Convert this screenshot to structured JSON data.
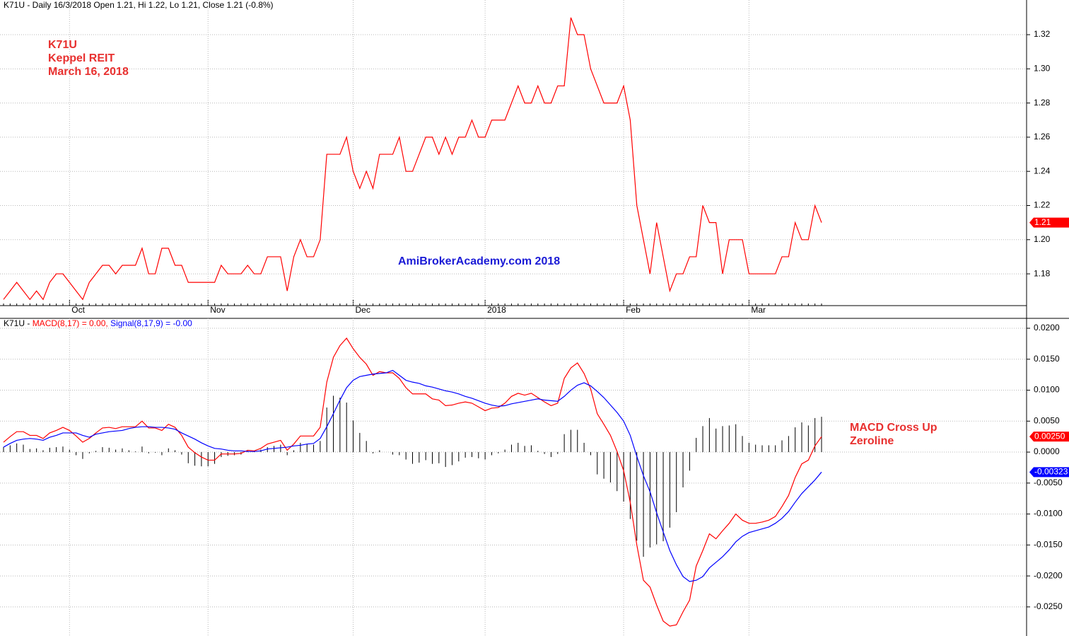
{
  "chart_data": [
    {
      "type": "line",
      "title": "K71U - Daily 16/3/2018 Open 1.21, Hi 1.22, Lo 1.21, Close 1.21 (-0.8%)",
      "categories": [
        null,
        null,
        null,
        null,
        null,
        null,
        null,
        null,
        null,
        null,
        "Oct",
        null,
        null,
        null,
        null,
        null,
        null,
        null,
        null,
        null,
        null,
        null,
        null,
        null,
        null,
        null,
        null,
        null,
        null,
        null,
        null,
        "Nov",
        null,
        null,
        null,
        null,
        null,
        null,
        null,
        null,
        null,
        null,
        null,
        null,
        null,
        null,
        null,
        null,
        null,
        null,
        null,
        null,
        null,
        "Dec",
        null,
        null,
        null,
        null,
        null,
        null,
        null,
        null,
        null,
        null,
        null,
        null,
        null,
        null,
        null,
        null,
        null,
        null,
        null,
        "2018",
        null,
        null,
        null,
        null,
        null,
        null,
        null,
        null,
        null,
        null,
        null,
        null,
        null,
        null,
        null,
        null,
        null,
        null,
        null,
        null,
        "Feb",
        null,
        null,
        null,
        null,
        null,
        null,
        null,
        null,
        null,
        null,
        null,
        null,
        null,
        null,
        null,
        null,
        null,
        null,
        "Mar",
        null,
        null,
        null,
        null,
        null,
        null,
        null,
        null,
        null,
        null,
        null
      ],
      "series": [
        {
          "color": "#ff0000",
          "values": [
            1.165,
            1.17,
            1.175,
            1.17,
            1.165,
            1.17,
            1.165,
            1.175,
            1.18,
            1.18,
            1.175,
            1.17,
            1.165,
            1.175,
            1.18,
            1.185,
            1.185,
            1.18,
            1.185,
            1.185,
            1.185,
            1.195,
            1.18,
            1.18,
            1.195,
            1.195,
            1.185,
            1.185,
            1.175,
            1.175,
            1.175,
            1.175,
            1.175,
            1.185,
            1.18,
            1.18,
            1.18,
            1.185,
            1.18,
            1.18,
            1.19,
            1.19,
            1.19,
            1.17,
            1.19,
            1.2,
            1.19,
            1.19,
            1.2,
            1.25,
            1.25,
            1.25,
            1.26,
            1.24,
            1.23,
            1.24,
            1.23,
            1.25,
            1.25,
            1.25,
            1.26,
            1.24,
            1.24,
            1.25,
            1.26,
            1.26,
            1.25,
            1.26,
            1.25,
            1.26,
            1.26,
            1.27,
            1.26,
            1.26,
            1.27,
            1.27,
            1.27,
            1.28,
            1.29,
            1.28,
            1.28,
            1.29,
            1.28,
            1.28,
            1.29,
            1.29,
            1.33,
            1.32,
            1.32,
            1.3,
            1.29,
            1.28,
            1.28,
            1.28,
            1.29,
            1.27,
            1.22,
            1.2,
            1.18,
            1.21,
            1.19,
            1.17,
            1.18,
            1.18,
            1.19,
            1.19,
            1.22,
            1.21,
            1.21,
            1.18,
            1.2,
            1.2,
            1.2,
            1.18,
            1.18,
            1.18,
            1.18,
            1.18,
            1.19,
            1.19,
            1.21,
            1.2,
            1.2,
            1.22,
            1.21
          ]
        }
      ],
      "ylim": [
        1.1614,
        1.3403
      ],
      "yticks": [
        1.18,
        {
          "value": 1.2,
          "label": "1.20"
        },
        1.22,
        1.24,
        1.26,
        1.28,
        {
          "value": 1.3,
          "label": "1.30"
        },
        1.32
      ],
      "grid": true,
      "annotations": [
        {
          "text": "K71U",
          "color": "#e8302f"
        },
        {
          "text": "Keppel REIT",
          "color": "#e8302f"
        },
        {
          "text": "March 16, 2018",
          "color": "#e8302f"
        },
        {
          "text": "AmiBrokerAcademy.com  2018",
          "color": "#1a1ad6"
        }
      ]
    },
    {
      "type": "macd",
      "title": "K71U - ",
      "series": [
        {
          "name": "MACD(8,17) = 0.00,",
          "color": "#ff0000",
          "last_value_label": "0.00250",
          "values": [
            0.0016,
            0.0025,
            0.0033,
            0.0033,
            0.0027,
            0.0027,
            0.0022,
            0.0031,
            0.0035,
            0.004,
            0.0035,
            0.0026,
            0.0016,
            0.0022,
            0.0031,
            0.0039,
            0.004,
            0.0038,
            0.0041,
            0.0041,
            0.0041,
            0.005,
            0.0039,
            0.0039,
            0.0035,
            0.0045,
            0.004,
            0.0027,
            0.0008,
            -0.0001,
            -0.0008,
            -0.0013,
            -0.0013,
            -0.0003,
            -0.0003,
            -0.0003,
            -0.0002,
            0.0003,
            0.0002,
            0.0006,
            0.0013,
            0.0016,
            0.0019,
            0.0003,
            0.0013,
            0.0026,
            0.0026,
            0.0026,
            0.004,
            0.0113,
            0.0153,
            0.0172,
            0.0184,
            0.0167,
            0.0153,
            0.0142,
            0.0124,
            0.013,
            0.0128,
            0.0128,
            0.0119,
            0.0104,
            0.0094,
            0.0094,
            0.0094,
            0.0086,
            0.0084,
            0.0075,
            0.0076,
            0.0079,
            0.0081,
            0.0079,
            0.0073,
            0.0067,
            0.0071,
            0.0072,
            0.0079,
            0.009,
            0.0095,
            0.0092,
            0.0095,
            0.0088,
            0.0081,
            0.0075,
            0.0079,
            0.0119,
            0.0136,
            0.0144,
            0.0127,
            0.0102,
            0.0062,
            0.0045,
            0.0027,
            0.0001,
            -0.003,
            -0.0081,
            -0.015,
            -0.0207,
            -0.0218,
            -0.0247,
            -0.0273,
            -0.0281,
            -0.0279,
            -0.0258,
            -0.0239,
            -0.0184,
            -0.0159,
            -0.0132,
            -0.014,
            -0.0127,
            -0.0115,
            -0.01,
            -0.011,
            -0.0115,
            -0.0115,
            -0.0113,
            -0.011,
            -0.0104,
            -0.0088,
            -0.007,
            -0.0041,
            -0.0019,
            -0.0013,
            0.001,
            0.0025
          ]
        },
        {
          "name": "Signal(8,17,9) = -0.00",
          "color": "#0000ff",
          "last_value_label": "-0.00323",
          "values": [
            0.0008,
            0.0014,
            0.0019,
            0.0021,
            0.0022,
            0.0021,
            0.0019,
            0.0024,
            0.0027,
            0.0031,
            0.0031,
            0.0031,
            0.0027,
            0.0024,
            0.0029,
            0.0031,
            0.0033,
            0.0034,
            0.0035,
            0.0038,
            0.004,
            0.0041,
            0.0041,
            0.004,
            0.004,
            0.0039,
            0.0037,
            0.0031,
            0.0026,
            0.0021,
            0.0015,
            0.001,
            0.0006,
            0.0005,
            0.0003,
            0.0002,
            0.0002,
            0.0001,
            0.0001,
            0.0002,
            0.0005,
            0.0006,
            0.0007,
            0.0008,
            0.001,
            0.0011,
            0.0013,
            0.0014,
            0.0022,
            0.0041,
            0.0062,
            0.0084,
            0.0104,
            0.0116,
            0.0122,
            0.0124,
            0.0126,
            0.0127,
            0.0128,
            0.0132,
            0.0124,
            0.0116,
            0.0113,
            0.0111,
            0.0107,
            0.0105,
            0.0102,
            0.0099,
            0.0097,
            0.0094,
            0.009,
            0.0087,
            0.0083,
            0.0079,
            0.0076,
            0.0074,
            0.0075,
            0.0078,
            0.008,
            0.0082,
            0.0084,
            0.0086,
            0.0084,
            0.0083,
            0.0082,
            0.009,
            0.01,
            0.0108,
            0.0112,
            0.0107,
            0.0098,
            0.0088,
            0.0076,
            0.0064,
            0.005,
            0.0027,
            -0.0007,
            -0.0038,
            -0.0064,
            -0.0098,
            -0.0129,
            -0.0159,
            -0.0182,
            -0.0201,
            -0.0209,
            -0.0207,
            -0.0201,
            -0.0187,
            -0.0178,
            -0.0169,
            -0.0158,
            -0.0145,
            -0.0136,
            -0.013,
            -0.0127,
            -0.0124,
            -0.0121,
            -0.0115,
            -0.0107,
            -0.0096,
            -0.0081,
            -0.0067,
            -0.0056,
            -0.0045,
            -0.00323
          ]
        }
      ],
      "histogram": {
        "color": "#000000",
        "values": [
          0.0008,
          0.0011,
          0.0014,
          0.0012,
          0.0005,
          0.0006,
          0.0003,
          0.0007,
          0.0008,
          0.0009,
          0.0004,
          -0.0005,
          -0.0011,
          -0.0002,
          0.0002,
          0.0008,
          0.0007,
          0.0004,
          0.0006,
          0.0003,
          0.0001,
          0.0009,
          -0.0002,
          -0.0001,
          -0.0005,
          0.0006,
          0.0003,
          -0.0004,
          -0.0018,
          -0.0022,
          -0.0023,
          -0.0023,
          -0.0019,
          -0.0008,
          -0.0006,
          -0.0005,
          -0.0004,
          0.0002,
          0.0001,
          0.0004,
          0.0008,
          0.001,
          0.0012,
          -0.0005,
          0.0003,
          0.0015,
          0.0013,
          0.0012,
          0.0018,
          0.0072,
          0.0091,
          0.0088,
          0.008,
          0.0051,
          0.0031,
          0.0018,
          -0.0002,
          0.0003,
          0,
          -0.0004,
          -0.0005,
          -0.0012,
          -0.0019,
          -0.0017,
          -0.0013,
          -0.0019,
          -0.0018,
          -0.0024,
          -0.0021,
          -0.0015,
          -0.0009,
          -0.0008,
          -0.001,
          -0.0012,
          -0.0005,
          -0.0002,
          0.0004,
          0.0012,
          0.0015,
          0.001,
          0.0011,
          0.0002,
          -0.0003,
          -0.0008,
          -0.0003,
          0.0029,
          0.0036,
          0.0036,
          0.0015,
          -0.0005,
          -0.0036,
          -0.0043,
          -0.0049,
          -0.0063,
          -0.008,
          -0.0108,
          -0.0143,
          -0.0169,
          -0.0154,
          -0.0149,
          -0.0144,
          -0.0122,
          -0.0097,
          -0.0057,
          -0.003,
          0.0023,
          0.0042,
          0.0055,
          0.0038,
          0.0042,
          0.0043,
          0.0045,
          0.0026,
          0.0015,
          0.0012,
          0.0011,
          0.0011,
          0.0011,
          0.0019,
          0.0026,
          0.004,
          0.0048,
          0.0043,
          0.0055,
          0.0057
        ]
      },
      "ylim": [
        -0.0297,
        0.0216
      ],
      "yticks": [
        {
          "value": 0.02,
          "label": "0.0200"
        },
        {
          "value": 0.015,
          "label": "0.0150"
        },
        {
          "value": 0.01,
          "label": "0.0100"
        },
        {
          "value": 0.005,
          "label": "0.0050"
        },
        {
          "value": 0,
          "label": "0.0000"
        },
        {
          "value": -0.005,
          "label": "-0.0050"
        },
        {
          "value": -0.01,
          "label": "-0.0100"
        },
        {
          "value": -0.015,
          "label": "-0.0150"
        },
        {
          "value": -0.02,
          "label": "-0.0200"
        },
        {
          "value": -0.025,
          "label": "-0.0250"
        }
      ],
      "grid": true,
      "annotations": [
        {
          "text": "MACD Cross Up",
          "color": "#e8302f"
        },
        {
          "text": "Zeroline",
          "color": "#e8302f"
        }
      ]
    }
  ]
}
